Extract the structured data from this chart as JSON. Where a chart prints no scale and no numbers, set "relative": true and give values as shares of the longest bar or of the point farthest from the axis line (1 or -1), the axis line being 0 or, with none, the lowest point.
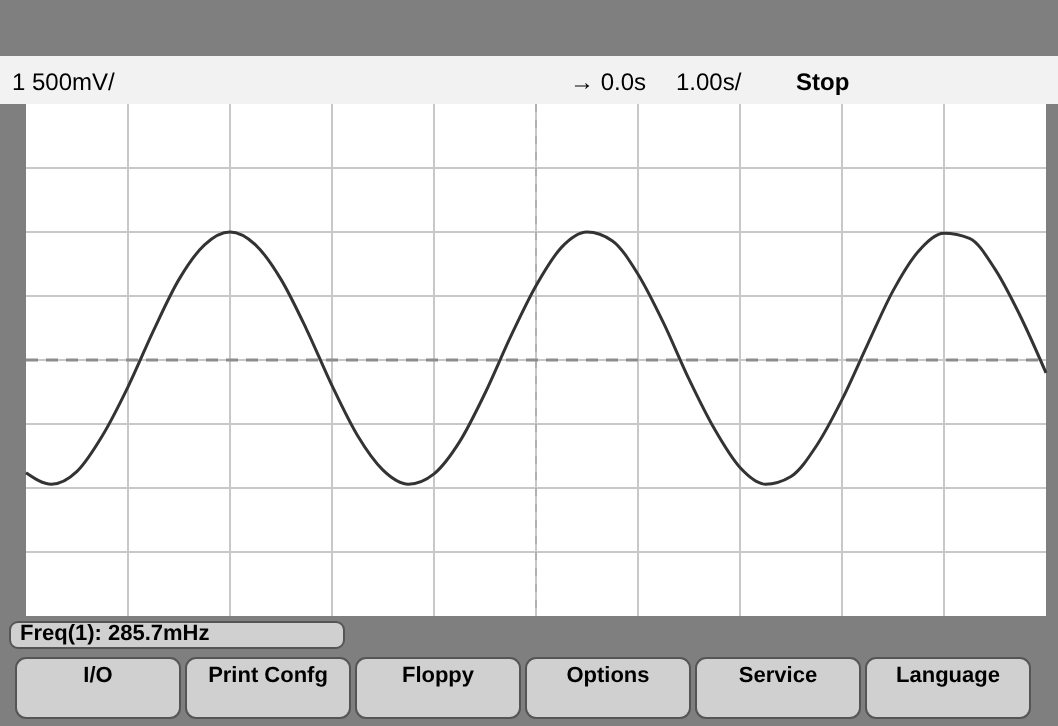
{
  "chart_data": {
    "type": "line",
    "relative": true,
    "grid": true,
    "categories": [
      null,
      null,
      null,
      null,
      null,
      null,
      null,
      null,
      null,
      null,
      null,
      null,
      null,
      null,
      null,
      null,
      null,
      null,
      null,
      null,
      null,
      null,
      null,
      null,
      null,
      null,
      null,
      null,
      null,
      null,
      null,
      null,
      null,
      null,
      null,
      null,
      null,
      null,
      null,
      null,
      null
    ],
    "series": [
      {
        "color": "#333333",
        "values": [
          -0.88,
          -0.97,
          -0.87,
          -0.59,
          -0.21,
          0.23,
          0.63,
          0.9,
          1.0,
          0.9,
          0.63,
          0.24,
          -0.2,
          -0.59,
          -0.86,
          -0.97,
          -0.89,
          -0.64,
          -0.26,
          0.18,
          0.58,
          0.88,
          1.0,
          0.93,
          0.67,
          0.29,
          -0.15,
          -0.54,
          -0.84,
          -0.97,
          -0.91,
          -0.67,
          -0.31,
          0.12,
          0.54,
          0.85,
          0.99,
          0.95,
          0.71,
          0.34,
          -0.1
        ]
      }
    ],
    "ref_lines": [
      {
        "axis": "y",
        "value": 0,
        "line_style": "dashed",
        "color": "#8c8c8c"
      }
    ],
    "annotations": [
      "1 500mV/",
      "→ 0.0s",
      "1.00s/",
      "Stop",
      "Freq(1): 285.7mHz",
      "I/O",
      "Print Confg",
      "Floppy",
      "Options",
      "Service",
      "Language"
    ]
  }
}
